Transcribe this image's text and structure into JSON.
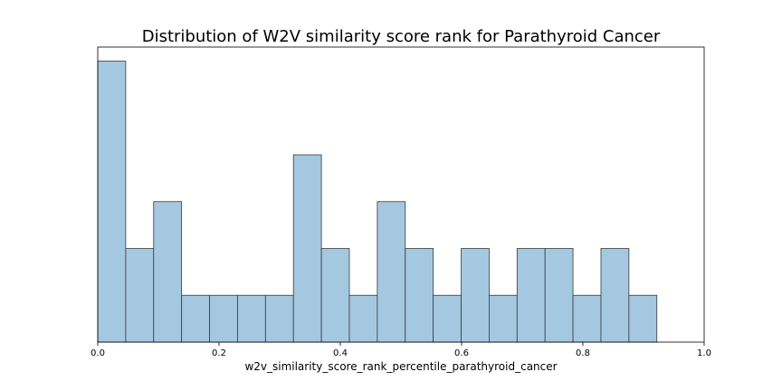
{
  "chart_data": {
    "type": "bar",
    "title": "Distribution of W2V similarity score rank for Parathyroid Cancer",
    "xlabel": "w2v_similarity_score_rank_percentile_parathyroid_cancer",
    "ylabel": "",
    "bin_width": 0.0461,
    "bins": [
      {
        "x0": 0.0,
        "count": 6
      },
      {
        "x0": 0.0461,
        "count": 2
      },
      {
        "x0": 0.0922,
        "count": 3
      },
      {
        "x0": 0.1383,
        "count": 1
      },
      {
        "x0": 0.1844,
        "count": 1
      },
      {
        "x0": 0.2305,
        "count": 1
      },
      {
        "x0": 0.2766,
        "count": 1
      },
      {
        "x0": 0.3227,
        "count": 4
      },
      {
        "x0": 0.3688,
        "count": 2
      },
      {
        "x0": 0.4149,
        "count": 1
      },
      {
        "x0": 0.461,
        "count": 3
      },
      {
        "x0": 0.5071,
        "count": 2
      },
      {
        "x0": 0.5532,
        "count": 1
      },
      {
        "x0": 0.5993,
        "count": 2
      },
      {
        "x0": 0.6454,
        "count": 1
      },
      {
        "x0": 0.6915,
        "count": 2
      },
      {
        "x0": 0.7376,
        "count": 2
      },
      {
        "x0": 0.7837,
        "count": 1
      },
      {
        "x0": 0.8298,
        "count": 2
      },
      {
        "x0": 0.8759,
        "count": 1
      }
    ],
    "xlim": [
      0.0,
      1.0
    ],
    "ylim": [
      0,
      6.3
    ],
    "xticks": [
      "0.0",
      "0.2",
      "0.4",
      "0.6",
      "0.8",
      "1.0"
    ],
    "grid": false,
    "y_axis_visible": false,
    "colors": {
      "bar_fill": "#a5c8e1",
      "bar_edge": "#3a3a3a"
    }
  }
}
